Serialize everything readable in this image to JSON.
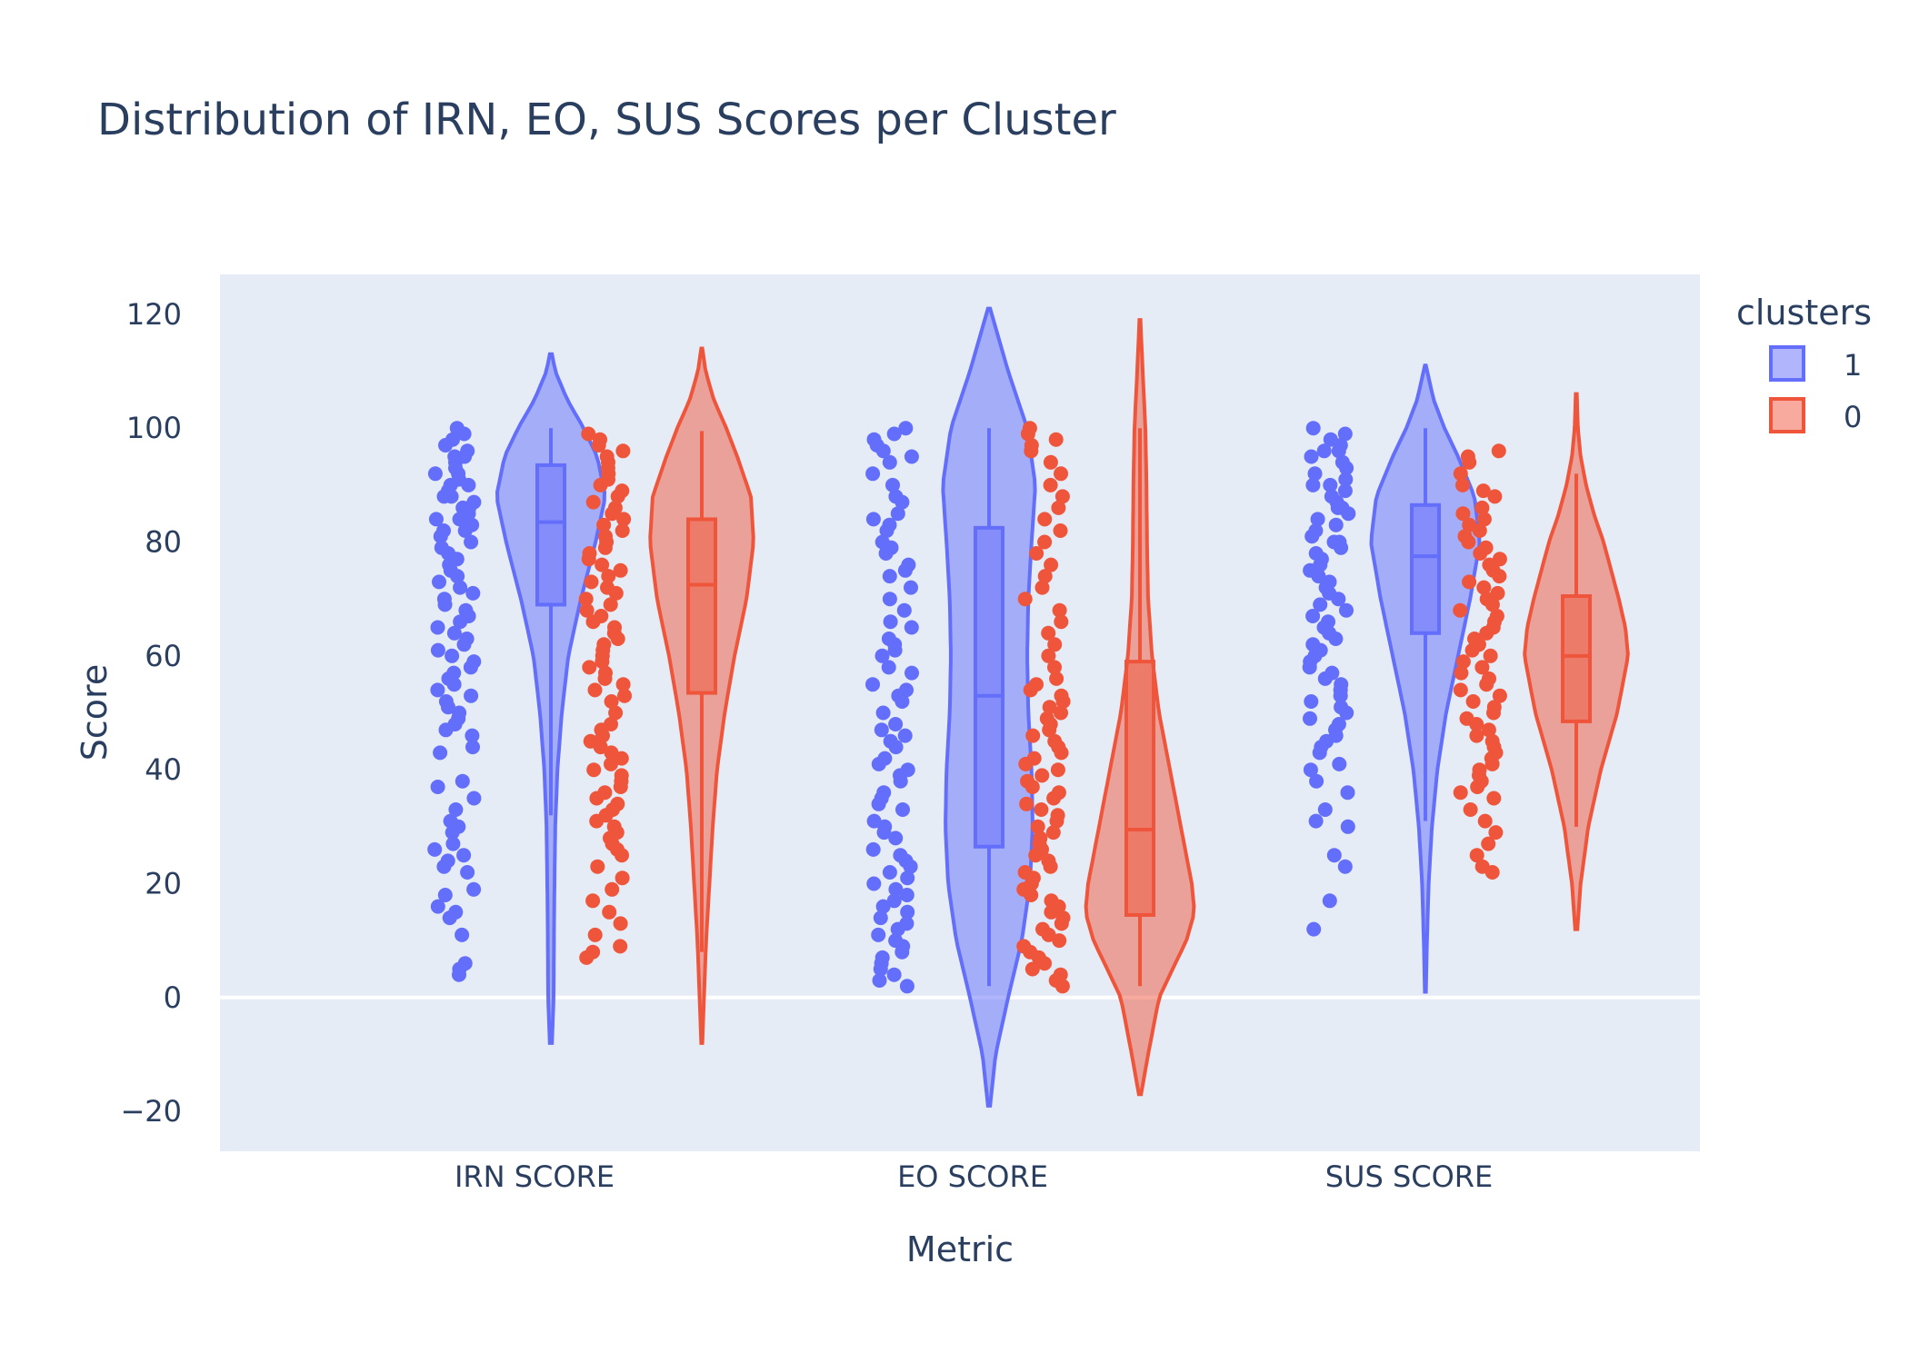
{
  "chart_data": {
    "type": "violin",
    "title": "Distribution of IRN, EO, SUS Scores per Cluster",
    "xlabel": "Metric",
    "ylabel": "Score",
    "ylim": [
      -27,
      127
    ],
    "yticks": [
      -20,
      0,
      20,
      40,
      60,
      80,
      100,
      120
    ],
    "categories": [
      "IRN SCORE",
      "EO SCORE",
      "SUS SCORE"
    ],
    "legend": {
      "title": "clusters",
      "position": "top-right"
    },
    "grid": false,
    "colors": {
      "plot_bg": "#e5ecf6",
      "cluster_1": "#636efa",
      "cluster_0": "#ef553b",
      "text": "#2a3f5f"
    },
    "series": [
      {
        "name": "1",
        "color": "#636efa",
        "groups": [
          {
            "category": "IRN SCORE",
            "kde_range": [
              -8,
              113
            ],
            "density_profile": [
              [
                -8,
                0.02
              ],
              [
                0,
                0.05
              ],
              [
                15,
                0.06
              ],
              [
                30,
                0.08
              ],
              [
                40,
                0.12
              ],
              [
                50,
                0.2
              ],
              [
                60,
                0.32
              ],
              [
                70,
                0.55
              ],
              [
                80,
                0.82
              ],
              [
                88,
                1.0
              ],
              [
                95,
                0.85
              ],
              [
                100,
                0.6
              ],
              [
                105,
                0.3
              ],
              [
                110,
                0.08
              ],
              [
                113,
                0.02
              ]
            ],
            "box": {
              "min": 32,
              "q1": 69,
              "median": 83.5,
              "q3": 93.5,
              "max": 100
            },
            "points": [
              99,
              100,
              98,
              97,
              96,
              95,
              95,
              94,
              93,
              92,
              92,
              91,
              90,
              90,
              89,
              88,
              88,
              87,
              86,
              86,
              85,
              84,
              84,
              83,
              82,
              82,
              81,
              80,
              79,
              78,
              77,
              76,
              75,
              74,
              73,
              72,
              71,
              70,
              69,
              68,
              67,
              66,
              65,
              64,
              63,
              62,
              61,
              60,
              59,
              58,
              57,
              56,
              55,
              54,
              53,
              52,
              51,
              50,
              49,
              48,
              47,
              46,
              44,
              43,
              38,
              37,
              35,
              33,
              31,
              30,
              29,
              27,
              26,
              25,
              24,
              23,
              22,
              19,
              18,
              16,
              15,
              14,
              11,
              6,
              5,
              4
            ]
          },
          {
            "category": "EO SCORE",
            "kde_range": [
              -19,
              121
            ],
            "density_profile": [
              [
                -19,
                0.02
              ],
              [
                -10,
                0.12
              ],
              [
                0,
                0.35
              ],
              [
                10,
                0.6
              ],
              [
                20,
                0.75
              ],
              [
                30,
                0.8
              ],
              [
                40,
                0.78
              ],
              [
                50,
                0.72
              ],
              [
                60,
                0.7
              ],
              [
                70,
                0.72
              ],
              [
                80,
                0.78
              ],
              [
                90,
                0.85
              ],
              [
                100,
                0.7
              ],
              [
                110,
                0.35
              ],
              [
                121,
                0.02
              ]
            ],
            "box": {
              "min": 2,
              "q1": 26.5,
              "median": 53,
              "q3": 82.5,
              "max": 100
            },
            "points": [
              100,
              99,
              98,
              97,
              96,
              95,
              94,
              92,
              90,
              88,
              87,
              85,
              84,
              83,
              82,
              80,
              79,
              78,
              76,
              75,
              74,
              72,
              70,
              68,
              66,
              65,
              63,
              62,
              61,
              60,
              58,
              57,
              55,
              54,
              53,
              52,
              50,
              48,
              47,
              46,
              45,
              44,
              42,
              41,
              40,
              39,
              38,
              36,
              35,
              34,
              33,
              31,
              30,
              29,
              28,
              26,
              25,
              24,
              23,
              22,
              21,
              20,
              19,
              18,
              17,
              16,
              15,
              14,
              13,
              12,
              11,
              10,
              9,
              8,
              7,
              6,
              5,
              4,
              3,
              2
            ]
          },
          {
            "category": "SUS SCORE",
            "kde_range": [
              1,
              111
            ],
            "density_profile": [
              [
                1,
                0.01
              ],
              [
                10,
                0.03
              ],
              [
                20,
                0.06
              ],
              [
                30,
                0.12
              ],
              [
                40,
                0.22
              ],
              [
                50,
                0.38
              ],
              [
                60,
                0.6
              ],
              [
                70,
                0.82
              ],
              [
                80,
                1.0
              ],
              [
                88,
                0.9
              ],
              [
                95,
                0.6
              ],
              [
                100,
                0.35
              ],
              [
                105,
                0.15
              ],
              [
                111,
                0.01
              ]
            ],
            "box": {
              "min": 31,
              "q1": 64,
              "median": 77.5,
              "q3": 86.5,
              "max": 100
            },
            "points": [
              100,
              99,
              98,
              97,
              96,
              96,
              95,
              94,
              93,
              92,
              91,
              90,
              90,
              89,
              88,
              87,
              86,
              86,
              85,
              84,
              83,
              82,
              81,
              80,
              80,
              79,
              78,
              77,
              76,
              75,
              74,
              73,
              72,
              71,
              70,
              69,
              68,
              67,
              66,
              65,
              64,
              63,
              62,
              61,
              60,
              59,
              58,
              57,
              56,
              55,
              54,
              53,
              52,
              51,
              50,
              49,
              48,
              47,
              46,
              45,
              44,
              43,
              41,
              40,
              38,
              36,
              33,
              31,
              30,
              25,
              23,
              17,
              12
            ]
          }
        ]
      },
      {
        "name": "0",
        "color": "#ef553b",
        "groups": [
          {
            "category": "IRN SCORE",
            "kde_range": [
              -8,
              114
            ],
            "density_profile": [
              [
                -8,
                0.01
              ],
              [
                0,
                0.04
              ],
              [
                10,
                0.08
              ],
              [
                20,
                0.14
              ],
              [
                30,
                0.2
              ],
              [
                40,
                0.28
              ],
              [
                50,
                0.42
              ],
              [
                60,
                0.6
              ],
              [
                70,
                0.82
              ],
              [
                80,
                0.95
              ],
              [
                88,
                0.9
              ],
              [
                95,
                0.65
              ],
              [
                100,
                0.45
              ],
              [
                105,
                0.22
              ],
              [
                110,
                0.07
              ],
              [
                114,
                0.01
              ]
            ],
            "box": {
              "min": 8,
              "q1": 53.5,
              "median": 72.5,
              "q3": 84,
              "max": 99.5
            },
            "points": [
              99,
              98,
              97,
              96,
              95,
              94,
              93,
              92,
              91,
              90,
              89,
              88,
              87,
              86,
              85,
              84,
              83,
              82,
              81,
              80,
              79,
              78,
              77,
              76,
              75,
              74,
              73,
              72,
              71,
              70,
              69,
              68,
              67,
              66,
              65,
              64,
              63,
              62,
              61,
              60,
              59,
              58,
              57,
              56,
              55,
              54,
              53,
              52,
              50,
              48,
              47,
              46,
              45,
              44,
              43,
              42,
              41,
              40,
              39,
              38,
              37,
              36,
              35,
              34,
              33,
              32,
              31,
              30,
              29,
              28,
              27,
              26,
              25,
              23,
              21,
              19,
              17,
              15,
              13,
              11,
              9,
              8,
              7
            ]
          },
          {
            "category": "EO SCORE",
            "kde_range": [
              -17,
              119
            ],
            "density_profile": [
              [
                -17,
                0.02
              ],
              [
                -10,
                0.15
              ],
              [
                0,
                0.35
              ],
              [
                10,
                0.85
              ],
              [
                15,
                1.0
              ],
              [
                20,
                0.95
              ],
              [
                30,
                0.75
              ],
              [
                40,
                0.55
              ],
              [
                50,
                0.35
              ],
              [
                60,
                0.22
              ],
              [
                70,
                0.15
              ],
              [
                80,
                0.13
              ],
              [
                90,
                0.12
              ],
              [
                100,
                0.1
              ],
              [
                110,
                0.05
              ],
              [
                119,
                0.01
              ]
            ],
            "box": {
              "min": 2,
              "q1": 14.5,
              "median": 29.5,
              "q3": 59,
              "max": 100
            },
            "points": [
              100,
              99,
              98,
              97,
              96,
              94,
              92,
              90,
              88,
              86,
              84,
              82,
              80,
              78,
              76,
              74,
              72,
              70,
              68,
              66,
              64,
              62,
              60,
              58,
              56,
              55,
              54,
              53,
              52,
              51,
              50,
              49,
              48,
              47,
              46,
              45,
              44,
              43,
              42,
              41,
              40,
              39,
              38,
              37,
              36,
              35,
              34,
              33,
              32,
              31,
              30,
              29,
              28,
              27,
              26,
              25,
              24,
              23,
              22,
              21,
              20,
              19,
              18,
              17,
              16,
              15,
              14,
              13,
              12,
              11,
              10,
              9,
              8,
              7,
              6,
              5,
              4,
              3,
              2
            ]
          },
          {
            "category": "SUS SCORE",
            "kde_range": [
              12,
              106
            ],
            "density_profile": [
              [
                12,
                0.02
              ],
              [
                20,
                0.08
              ],
              [
                30,
                0.22
              ],
              [
                40,
                0.45
              ],
              [
                50,
                0.75
              ],
              [
                60,
                0.95
              ],
              [
                65,
                0.9
              ],
              [
                70,
                0.78
              ],
              [
                80,
                0.5
              ],
              [
                85,
                0.32
              ],
              [
                90,
                0.18
              ],
              [
                95,
                0.08
              ],
              [
                100,
                0.03
              ],
              [
                106,
                0.01
              ]
            ],
            "box": {
              "min": 30,
              "q1": 48.5,
              "median": 60,
              "q3": 70.5,
              "max": 92
            },
            "points": [
              96,
              95,
              94,
              92,
              90,
              89,
              88,
              86,
              85,
              84,
              83,
              82,
              81,
              80,
              79,
              78,
              77,
              76,
              75,
              74,
              73,
              72,
              71,
              70,
              69,
              68,
              67,
              66,
              65,
              64,
              63,
              62,
              61,
              60,
              59,
              58,
              57,
              56,
              55,
              54,
              53,
              52,
              51,
              50,
              49,
              48,
              47,
              46,
              45,
              44,
              43,
              42,
              41,
              40,
              39,
              38,
              37,
              36,
              35,
              33,
              31,
              29,
              27,
              25,
              23,
              22
            ]
          }
        ]
      }
    ]
  }
}
